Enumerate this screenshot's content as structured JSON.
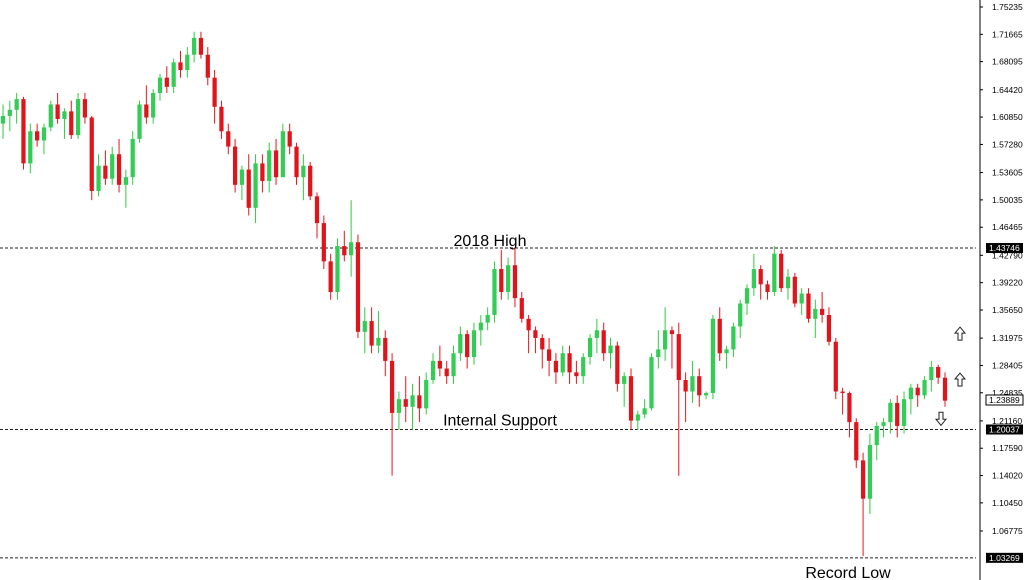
{
  "chart_data": {
    "type": "candlestick",
    "y_axis": {
      "position": "right",
      "ticks": [
        "1.75235",
        "1.71665",
        "1.68095",
        "1.64420",
        "1.60850",
        "1.57280",
        "1.53605",
        "1.50035",
        "1.46465",
        "1.42790",
        "1.39220",
        "1.35650",
        "1.31975",
        "1.28405",
        "1.24835",
        "1.21160",
        "1.17590",
        "1.14020",
        "1.10450",
        "1.06775"
      ],
      "ylim": [
        1.02,
        1.76
      ]
    },
    "levels": [
      {
        "value": 1.43746,
        "label": "1.43746",
        "annotation": "2018 High"
      },
      {
        "value": 1.20037,
        "label": "1.20037",
        "annotation": "Internal Support"
      },
      {
        "value": 1.03269,
        "label": "1.03269",
        "annotation": "Record Low"
      }
    ],
    "current_price": {
      "value": 1.23889,
      "label": "1.23889"
    },
    "arrows": [
      {
        "direction": "up",
        "price": 1.325
      },
      {
        "direction": "up",
        "price": 1.265
      },
      {
        "direction": "down",
        "price": 1.215
      }
    ],
    "colors": {
      "bull": "#2ecc40",
      "bear": "#e8141c",
      "bull_body": "#33cc55",
      "bear_body": "#e0141b",
      "level_line": "#222222",
      "label_bg": "#000000"
    },
    "grid": false,
    "candles": [
      [
        1.6,
        1.625,
        1.58,
        1.61
      ],
      [
        1.61,
        1.63,
        1.59,
        1.618
      ],
      [
        1.618,
        1.64,
        1.6,
        1.632
      ],
      [
        1.632,
        1.635,
        1.54,
        1.548
      ],
      [
        1.548,
        1.6,
        1.535,
        1.59
      ],
      [
        1.59,
        1.6,
        1.57,
        1.578
      ],
      [
        1.578,
        1.6,
        1.56,
        1.595
      ],
      [
        1.595,
        1.63,
        1.59,
        1.625
      ],
      [
        1.625,
        1.64,
        1.6,
        1.606
      ],
      [
        1.606,
        1.62,
        1.58,
        1.616
      ],
      [
        1.616,
        1.63,
        1.58,
        1.585
      ],
      [
        1.585,
        1.64,
        1.58,
        1.632
      ],
      [
        1.632,
        1.64,
        1.6,
        1.608
      ],
      [
        1.608,
        1.61,
        1.5,
        1.512
      ],
      [
        1.512,
        1.56,
        1.505,
        1.545
      ],
      [
        1.545,
        1.565,
        1.52,
        1.528
      ],
      [
        1.528,
        1.57,
        1.52,
        1.56
      ],
      [
        1.56,
        1.58,
        1.51,
        1.52
      ],
      [
        1.52,
        1.54,
        1.49,
        1.53
      ],
      [
        1.53,
        1.59,
        1.52,
        1.58
      ],
      [
        1.58,
        1.63,
        1.575,
        1.625
      ],
      [
        1.625,
        1.65,
        1.6,
        1.608
      ],
      [
        1.608,
        1.645,
        1.6,
        1.64
      ],
      [
        1.64,
        1.665,
        1.63,
        1.66
      ],
      [
        1.66,
        1.675,
        1.64,
        1.648
      ],
      [
        1.648,
        1.685,
        1.64,
        1.68
      ],
      [
        1.68,
        1.695,
        1.66,
        1.67
      ],
      [
        1.67,
        1.7,
        1.66,
        1.69
      ],
      [
        1.69,
        1.72,
        1.68,
        1.712
      ],
      [
        1.712,
        1.72,
        1.685,
        1.69
      ],
      [
        1.69,
        1.7,
        1.65,
        1.66
      ],
      [
        1.66,
        1.67,
        1.6,
        1.622
      ],
      [
        1.622,
        1.63,
        1.58,
        1.59
      ],
      [
        1.59,
        1.6,
        1.56,
        1.57
      ],
      [
        1.57,
        1.58,
        1.51,
        1.52
      ],
      [
        1.52,
        1.545,
        1.5,
        1.54
      ],
      [
        1.54,
        1.56,
        1.48,
        1.49
      ],
      [
        1.49,
        1.56,
        1.47,
        1.548
      ],
      [
        1.548,
        1.56,
        1.51,
        1.525
      ],
      [
        1.525,
        1.575,
        1.51,
        1.565
      ],
      [
        1.565,
        1.58,
        1.52,
        1.53
      ],
      [
        1.53,
        1.6,
        1.53,
        1.59
      ],
      [
        1.59,
        1.6,
        1.56,
        1.57
      ],
      [
        1.57,
        1.575,
        1.52,
        1.53
      ],
      [
        1.53,
        1.56,
        1.5,
        1.545
      ],
      [
        1.545,
        1.55,
        1.5,
        1.505
      ],
      [
        1.505,
        1.51,
        1.45,
        1.47
      ],
      [
        1.47,
        1.48,
        1.41,
        1.42
      ],
      [
        1.42,
        1.43,
        1.37,
        1.38
      ],
      [
        1.38,
        1.45,
        1.37,
        1.44
      ],
      [
        1.44,
        1.46,
        1.42,
        1.428
      ],
      [
        1.428,
        1.5,
        1.4,
        1.445
      ],
      [
        1.445,
        1.455,
        1.32,
        1.328
      ],
      [
        1.328,
        1.36,
        1.3,
        1.342
      ],
      [
        1.342,
        1.36,
        1.3,
        1.31
      ],
      [
        1.31,
        1.355,
        1.3,
        1.32
      ],
      [
        1.32,
        1.33,
        1.27,
        1.29
      ],
      [
        1.29,
        1.3,
        1.14,
        1.222
      ],
      [
        1.222,
        1.25,
        1.2,
        1.24
      ],
      [
        1.24,
        1.27,
        1.21,
        1.23
      ],
      [
        1.23,
        1.26,
        1.2,
        1.245
      ],
      [
        1.245,
        1.27,
        1.21,
        1.228
      ],
      [
        1.228,
        1.275,
        1.22,
        1.265
      ],
      [
        1.265,
        1.3,
        1.26,
        1.29
      ],
      [
        1.29,
        1.31,
        1.27,
        1.28
      ],
      [
        1.28,
        1.29,
        1.26,
        1.27
      ],
      [
        1.27,
        1.31,
        1.26,
        1.3
      ],
      [
        1.3,
        1.335,
        1.29,
        1.325
      ],
      [
        1.325,
        1.33,
        1.28,
        1.295
      ],
      [
        1.295,
        1.34,
        1.285,
        1.33
      ],
      [
        1.33,
        1.35,
        1.31,
        1.34
      ],
      [
        1.34,
        1.36,
        1.33,
        1.35
      ],
      [
        1.35,
        1.42,
        1.34,
        1.41
      ],
      [
        1.41,
        1.435,
        1.37,
        1.38
      ],
      [
        1.38,
        1.425,
        1.37,
        1.415
      ],
      [
        1.415,
        1.438,
        1.36,
        1.372
      ],
      [
        1.372,
        1.38,
        1.34,
        1.345
      ],
      [
        1.345,
        1.35,
        1.3,
        1.33
      ],
      [
        1.33,
        1.335,
        1.3,
        1.32
      ],
      [
        1.32,
        1.325,
        1.28,
        1.305
      ],
      [
        1.305,
        1.32,
        1.27,
        1.29
      ],
      [
        1.29,
        1.3,
        1.26,
        1.275
      ],
      [
        1.275,
        1.31,
        1.27,
        1.3
      ],
      [
        1.3,
        1.31,
        1.26,
        1.275
      ],
      [
        1.275,
        1.29,
        1.26,
        1.27
      ],
      [
        1.27,
        1.3,
        1.26,
        1.295
      ],
      [
        1.295,
        1.325,
        1.285,
        1.32
      ],
      [
        1.32,
        1.345,
        1.3,
        1.33
      ],
      [
        1.33,
        1.34,
        1.29,
        1.3
      ],
      [
        1.3,
        1.32,
        1.28,
        1.31
      ],
      [
        1.31,
        1.315,
        1.25,
        1.26
      ],
      [
        1.26,
        1.275,
        1.23,
        1.27
      ],
      [
        1.27,
        1.28,
        1.2,
        1.212
      ],
      [
        1.212,
        1.225,
        1.2,
        1.22
      ],
      [
        1.22,
        1.24,
        1.215,
        1.228
      ],
      [
        1.228,
        1.3,
        1.225,
        1.295
      ],
      [
        1.295,
        1.33,
        1.28,
        1.305
      ],
      [
        1.305,
        1.36,
        1.29,
        1.33
      ],
      [
        1.33,
        1.335,
        1.28,
        1.325
      ],
      [
        1.325,
        1.34,
        1.14,
        1.265
      ],
      [
        1.265,
        1.275,
        1.21,
        1.25
      ],
      [
        1.25,
        1.29,
        1.235,
        1.27
      ],
      [
        1.27,
        1.28,
        1.23,
        1.245
      ],
      [
        1.245,
        1.25,
        1.24,
        1.248
      ],
      [
        1.248,
        1.35,
        1.24,
        1.345
      ],
      [
        1.345,
        1.36,
        1.29,
        1.3
      ],
      [
        1.3,
        1.31,
        1.28,
        1.305
      ],
      [
        1.305,
        1.34,
        1.295,
        1.335
      ],
      [
        1.335,
        1.37,
        1.32,
        1.365
      ],
      [
        1.365,
        1.39,
        1.35,
        1.385
      ],
      [
        1.385,
        1.43,
        1.375,
        1.41
      ],
      [
        1.41,
        1.415,
        1.37,
        1.39
      ],
      [
        1.39,
        1.395,
        1.37,
        1.38
      ],
      [
        1.38,
        1.44,
        1.375,
        1.43
      ],
      [
        1.43,
        1.435,
        1.38,
        1.385
      ],
      [
        1.385,
        1.41,
        1.37,
        1.4
      ],
      [
        1.4,
        1.405,
        1.36,
        1.365
      ],
      [
        1.365,
        1.385,
        1.35,
        1.378
      ],
      [
        1.378,
        1.385,
        1.34,
        1.345
      ],
      [
        1.345,
        1.37,
        1.32,
        1.358
      ],
      [
        1.358,
        1.38,
        1.34,
        1.35
      ],
      [
        1.35,
        1.36,
        1.31,
        1.315
      ],
      [
        1.315,
        1.32,
        1.24,
        1.25
      ],
      [
        1.25,
        1.255,
        1.22,
        1.248
      ],
      [
        1.248,
        1.25,
        1.19,
        1.21
      ],
      [
        1.21,
        1.215,
        1.15,
        1.16
      ],
      [
        1.16,
        1.17,
        1.035,
        1.11
      ],
      [
        1.11,
        1.195,
        1.09,
        1.18
      ],
      [
        1.18,
        1.21,
        1.16,
        1.205
      ],
      [
        1.205,
        1.215,
        1.19,
        1.21
      ],
      [
        1.21,
        1.24,
        1.195,
        1.235
      ],
      [
        1.235,
        1.245,
        1.19,
        1.205
      ],
      [
        1.205,
        1.25,
        1.195,
        1.24
      ],
      [
        1.24,
        1.26,
        1.22,
        1.255
      ],
      [
        1.255,
        1.26,
        1.23,
        1.245
      ],
      [
        1.245,
        1.27,
        1.24,
        1.265
      ],
      [
        1.265,
        1.29,
        1.25,
        1.282
      ],
      [
        1.282,
        1.285,
        1.26,
        1.268
      ],
      [
        1.268,
        1.275,
        1.23,
        1.238
      ]
    ]
  }
}
